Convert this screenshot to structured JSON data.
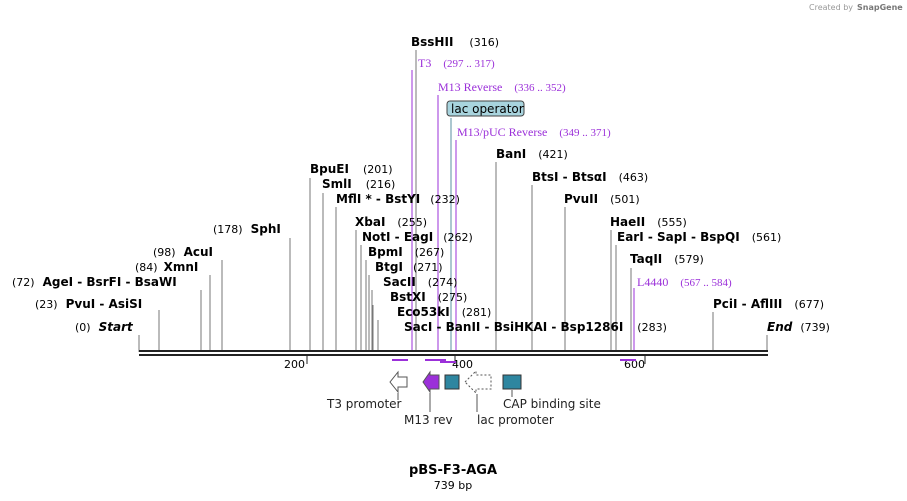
{
  "credit": "Created by",
  "credit_brand": "SnapGene",
  "plasmid": {
    "name": "pBS-F3-AGA",
    "length_label": "739 bp",
    "length": 739
  },
  "colors": {
    "primer": "#9b30d9",
    "feature_teal": "#2e86a0",
    "lac_box": "#a8d4de",
    "line": "#222222"
  },
  "ticks": [
    {
      "label": "200",
      "pos": 200
    },
    {
      "label": "400",
      "pos": 400
    },
    {
      "label": "600",
      "pos": 600
    }
  ],
  "sites": [
    {
      "name": "BssHII",
      "pos": "(316)"
    },
    {
      "name": "BpuEI",
      "pos": "(201)"
    },
    {
      "name": "SmlI",
      "pos": "(216)"
    },
    {
      "name": "MflI * - BstYI",
      "pos": "(232)"
    },
    {
      "name": "SphI",
      "pos": "(178)"
    },
    {
      "name": "XbaI",
      "pos": "(255)"
    },
    {
      "name": "NotI - EagI",
      "pos": "(262)"
    },
    {
      "name": "BpmI",
      "pos": "(267)"
    },
    {
      "name": "BtgI",
      "pos": "(271)"
    },
    {
      "name": "SacII",
      "pos": "(274)"
    },
    {
      "name": "BstXI",
      "pos": "(275)"
    },
    {
      "name": "Eco53kI",
      "pos": "(281)"
    },
    {
      "name": "SacI - BanII - BsiHKAI - Bsp1286I",
      "pos": "(283)"
    },
    {
      "name": "AcuI",
      "pos": "(98)"
    },
    {
      "name": "XmnI",
      "pos": "(84)"
    },
    {
      "name": "AgeI - BsrFI - BsaWI",
      "pos": "(72)"
    },
    {
      "name": "PvuI - AsiSI",
      "pos": "(23)"
    },
    {
      "name": "Start",
      "pos": "(0)"
    },
    {
      "name": "BanI",
      "pos": "(421)"
    },
    {
      "name": "BtsI - BtsαI",
      "pos": "(463)"
    },
    {
      "name": "PvuII",
      "pos": "(501)"
    },
    {
      "name": "HaeII",
      "pos": "(555)"
    },
    {
      "name": "EarI - SapI - BspQI",
      "pos": "(561)"
    },
    {
      "name": "TaqII",
      "pos": "(579)"
    },
    {
      "name": "PciI - AflIII",
      "pos": "(677)"
    },
    {
      "name": "End",
      "pos": "(739)"
    }
  ],
  "primers": [
    {
      "name": "T3",
      "range": "(297 .. 317)"
    },
    {
      "name": "M13 Reverse",
      "range": "(336 .. 352)"
    },
    {
      "name": "M13/pUC Reverse",
      "range": "(349 .. 371)"
    },
    {
      "name": "L4440",
      "range": "(567 .. 584)"
    }
  ],
  "lac_operator": "lac operator",
  "features": [
    {
      "name": "T3 promoter"
    },
    {
      "name": "M13 rev"
    },
    {
      "name": "lac promoter"
    },
    {
      "name": "CAP binding site"
    }
  ]
}
